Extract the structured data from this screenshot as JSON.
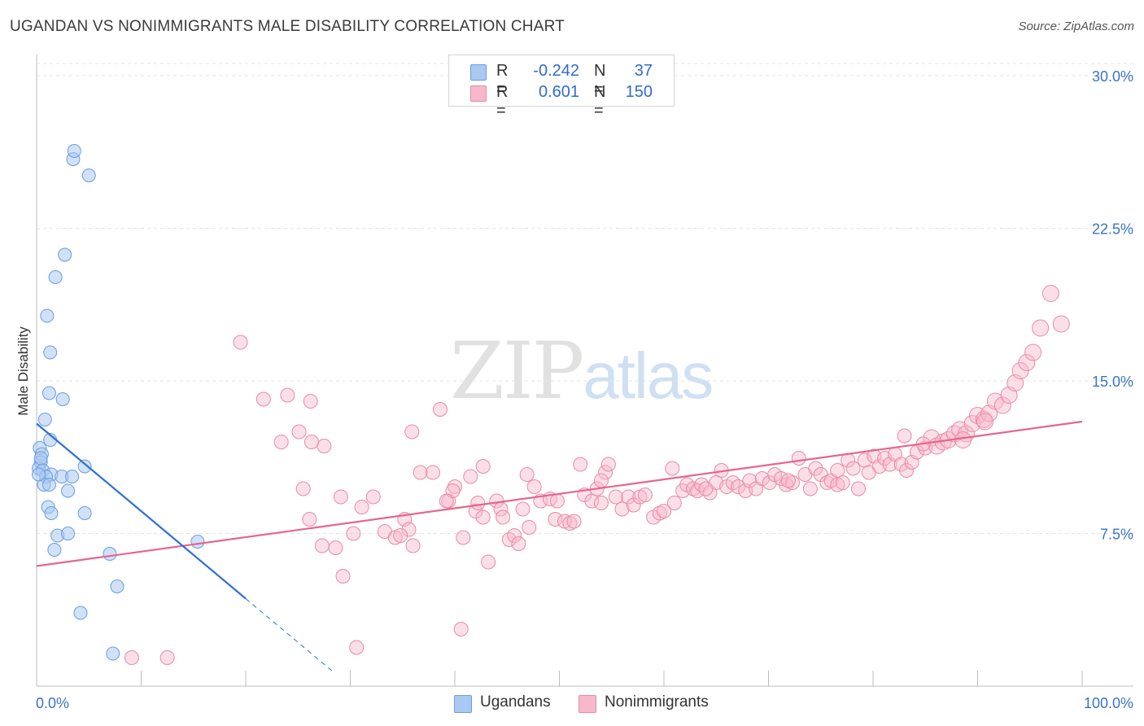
{
  "title": "UGANDAN VS NONIMMIGRANTS MALE DISABILITY CORRELATION CHART",
  "source": "Source: ZipAtlas.com",
  "watermark": {
    "zip": "ZIP",
    "atlas": "atlas"
  },
  "legend": {
    "r_label": "R =",
    "n_label": "N =",
    "rows": [
      {
        "r": "-0.242",
        "n": "37",
        "color": "#a9c9f2",
        "border": "#6a9ee0"
      },
      {
        "r": "0.601",
        "n": "150",
        "color": "#f7b8cb",
        "border": "#e98aa6"
      }
    ]
  },
  "bottom_legend": [
    {
      "label": "Ugandans",
      "color": "#a9c9f2",
      "border": "#6a9ee0"
    },
    {
      "label": "Nonimmigrants",
      "color": "#f7b8cb",
      "border": "#e98aa6"
    }
  ],
  "colors": {
    "blue_fill": "rgba(169,201,242,0.55)",
    "blue_stroke": "#6a9ee0",
    "blue_line": "#2f6fd6",
    "pink_fill": "rgba(247,184,203,0.45)",
    "pink_stroke": "#e98aa6",
    "pink_line": "#e4668f",
    "tick_label": "#3a74c9",
    "grid": "#e3e3e3"
  },
  "chart_data": {
    "type": "scatter",
    "title": "UGANDAN VS NONIMMIGRANTS MALE DISABILITY CORRELATION CHART",
    "xlabel": "",
    "ylabel": "Male Disability",
    "xlim": [
      0,
      100
    ],
    "ylim": [
      0,
      30.6
    ],
    "x_tick_labels": [
      "0.0%",
      "100.0%"
    ],
    "y_ticks": [
      7.5,
      15.0,
      22.5,
      30.0
    ],
    "y_tick_labels": [
      "7.5%",
      "15.0%",
      "22.5%",
      "30.0%"
    ],
    "grid": true,
    "legend_position": "top-center",
    "series": [
      {
        "name": "Ugandans",
        "r": -0.242,
        "n": 37,
        "trend": {
          "x0": 0,
          "y0": 12.9,
          "x1": 20,
          "y1": 4.3,
          "dash_to_x": 28.5
        },
        "points": [
          [
            3.5,
            25.9
          ],
          [
            3.6,
            26.3
          ],
          [
            5.0,
            25.1
          ],
          [
            2.7,
            21.2
          ],
          [
            1.8,
            20.1
          ],
          [
            1.0,
            18.2
          ],
          [
            1.3,
            16.4
          ],
          [
            1.2,
            14.4
          ],
          [
            2.5,
            14.1
          ],
          [
            0.8,
            13.1
          ],
          [
            1.3,
            12.1
          ],
          [
            0.3,
            11.7
          ],
          [
            0.5,
            11.4
          ],
          [
            0.4,
            11.0
          ],
          [
            0.2,
            10.7
          ],
          [
            0.6,
            10.6
          ],
          [
            1.4,
            10.4
          ],
          [
            0.9,
            10.3
          ],
          [
            2.4,
            10.3
          ],
          [
            3.4,
            10.3
          ],
          [
            0.7,
            9.9
          ],
          [
            1.2,
            9.9
          ],
          [
            3.0,
            9.6
          ],
          [
            1.1,
            8.8
          ],
          [
            1.4,
            8.5
          ],
          [
            4.6,
            10.8
          ],
          [
            4.6,
            8.5
          ],
          [
            2.0,
            7.4
          ],
          [
            3.0,
            7.5
          ],
          [
            1.7,
            6.7
          ],
          [
            7.0,
            6.5
          ],
          [
            15.4,
            7.1
          ],
          [
            7.7,
            4.9
          ],
          [
            4.2,
            3.6
          ],
          [
            7.3,
            1.6
          ],
          [
            0.4,
            11.2
          ],
          [
            0.2,
            10.4
          ]
        ]
      },
      {
        "name": "Nonimmigrants",
        "r": 0.601,
        "n": 150,
        "trend": {
          "x0": 0,
          "y0": 5.9,
          "x1": 100,
          "y1": 13.0
        },
        "points": [
          [
            9.1,
            1.4
          ],
          [
            12.5,
            1.4
          ],
          [
            19.5,
            16.9
          ],
          [
            21.7,
            14.1
          ],
          [
            24.0,
            14.3
          ],
          [
            26.2,
            14.0
          ],
          [
            25.1,
            12.5
          ],
          [
            27.5,
            11.8
          ],
          [
            26.3,
            12.0
          ],
          [
            25.5,
            9.7
          ],
          [
            26.1,
            8.2
          ],
          [
            27.3,
            6.9
          ],
          [
            29.1,
            9.3
          ],
          [
            29.3,
            5.4
          ],
          [
            30.3,
            7.5
          ],
          [
            31.1,
            8.8
          ],
          [
            30.6,
            1.9
          ],
          [
            33.3,
            7.6
          ],
          [
            34.3,
            7.3
          ],
          [
            35.2,
            8.2
          ],
          [
            35.6,
            7.7
          ],
          [
            36.0,
            6.9
          ],
          [
            35.9,
            12.5
          ],
          [
            36.7,
            10.5
          ],
          [
            37.9,
            10.5
          ],
          [
            38.6,
            13.6
          ],
          [
            39.4,
            9.1
          ],
          [
            40.0,
            9.8
          ],
          [
            39.8,
            9.6
          ],
          [
            40.8,
            7.3
          ],
          [
            40.6,
            2.8
          ],
          [
            41.5,
            10.3
          ],
          [
            42.0,
            8.6
          ],
          [
            42.2,
            9.0
          ],
          [
            42.7,
            8.3
          ],
          [
            42.7,
            10.8
          ],
          [
            43.2,
            6.1
          ],
          [
            44.0,
            9.1
          ],
          [
            44.4,
            8.7
          ],
          [
            44.6,
            8.3
          ],
          [
            45.2,
            7.2
          ],
          [
            45.7,
            7.4
          ],
          [
            46.1,
            7.0
          ],
          [
            46.5,
            8.7
          ],
          [
            47.1,
            7.8
          ],
          [
            47.6,
            9.8
          ],
          [
            48.2,
            9.1
          ],
          [
            49.1,
            9.2
          ],
          [
            49.6,
            8.2
          ],
          [
            49.8,
            9.1
          ],
          [
            50.5,
            8.1
          ],
          [
            51.0,
            8.0
          ],
          [
            51.4,
            8.1
          ],
          [
            52.0,
            10.9
          ],
          [
            52.4,
            9.4
          ],
          [
            53.1,
            9.1
          ],
          [
            53.6,
            9.7
          ],
          [
            54.0,
            9.0
          ],
          [
            54.4,
            10.5
          ],
          [
            54.7,
            10.9
          ],
          [
            55.4,
            9.3
          ],
          [
            56.0,
            8.7
          ],
          [
            56.6,
            9.3
          ],
          [
            57.1,
            8.9
          ],
          [
            57.7,
            9.3
          ],
          [
            58.2,
            9.4
          ],
          [
            59.0,
            8.3
          ],
          [
            59.6,
            8.5
          ],
          [
            60.0,
            8.6
          ],
          [
            60.8,
            10.7
          ],
          [
            61.0,
            9.0
          ],
          [
            61.8,
            9.6
          ],
          [
            62.2,
            9.9
          ],
          [
            62.8,
            9.7
          ],
          [
            63.2,
            9.6
          ],
          [
            63.6,
            9.9
          ],
          [
            64.4,
            9.5
          ],
          [
            65.0,
            10.0
          ],
          [
            65.5,
            10.6
          ],
          [
            66.0,
            9.8
          ],
          [
            66.6,
            10.0
          ],
          [
            67.1,
            9.8
          ],
          [
            67.8,
            9.6
          ],
          [
            68.2,
            10.1
          ],
          [
            68.8,
            9.7
          ],
          [
            69.4,
            10.2
          ],
          [
            70.1,
            10.0
          ],
          [
            70.6,
            10.4
          ],
          [
            71.2,
            10.2
          ],
          [
            71.7,
            9.9
          ],
          [
            72.3,
            10.0
          ],
          [
            72.9,
            11.2
          ],
          [
            73.5,
            10.4
          ],
          [
            74.0,
            9.7
          ],
          [
            74.5,
            10.7
          ],
          [
            75.0,
            10.4
          ],
          [
            75.6,
            10.0
          ],
          [
            76.0,
            10.1
          ],
          [
            76.6,
            9.9
          ],
          [
            77.1,
            10.0
          ],
          [
            77.6,
            11.1
          ],
          [
            78.1,
            10.7
          ],
          [
            78.6,
            9.7
          ],
          [
            79.2,
            11.1
          ],
          [
            79.6,
            10.5
          ],
          [
            80.1,
            11.3
          ],
          [
            80.6,
            10.8
          ],
          [
            81.1,
            11.2
          ],
          [
            81.6,
            10.9
          ],
          [
            82.1,
            11.4
          ],
          [
            82.7,
            10.9
          ],
          [
            83.2,
            10.6
          ],
          [
            83.7,
            11.0
          ],
          [
            84.2,
            11.5
          ],
          [
            85.0,
            11.7
          ],
          [
            85.6,
            12.2
          ],
          [
            86.1,
            11.8
          ],
          [
            86.7,
            12.0
          ],
          [
            87.2,
            12.1
          ],
          [
            87.8,
            12.4
          ],
          [
            88.3,
            12.6
          ],
          [
            88.9,
            12.4
          ],
          [
            89.5,
            12.9
          ],
          [
            90.0,
            13.3
          ],
          [
            90.6,
            13.1
          ],
          [
            91.1,
            13.4
          ],
          [
            91.7,
            14.0
          ],
          [
            92.4,
            13.8
          ],
          [
            93.0,
            14.3
          ],
          [
            93.6,
            14.9
          ],
          [
            94.1,
            15.5
          ],
          [
            94.7,
            15.9
          ],
          [
            95.3,
            16.4
          ],
          [
            96.0,
            17.6
          ],
          [
            97.0,
            19.3
          ],
          [
            98.0,
            17.8
          ],
          [
            90.7,
            13.0
          ],
          [
            88.6,
            12.1
          ],
          [
            84.8,
            11.9
          ],
          [
            83.0,
            12.3
          ],
          [
            76.6,
            10.6
          ],
          [
            71.9,
            10.1
          ],
          [
            64.0,
            9.7
          ],
          [
            54.0,
            10.1
          ],
          [
            46.9,
            10.4
          ],
          [
            39.2,
            9.1
          ],
          [
            34.8,
            7.4
          ],
          [
            32.2,
            9.3
          ],
          [
            28.6,
            6.8
          ],
          [
            23.4,
            12.0
          ]
        ]
      }
    ]
  }
}
